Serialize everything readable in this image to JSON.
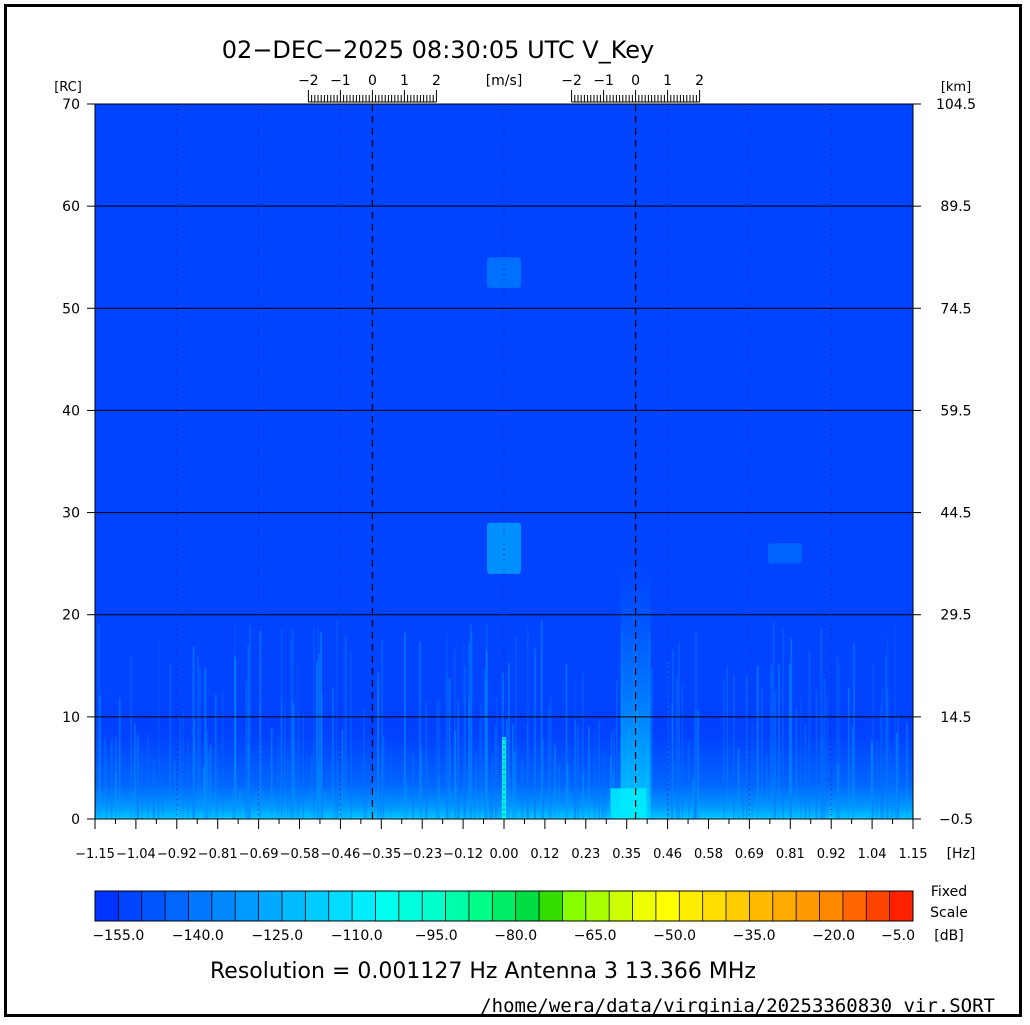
{
  "title": "02−DEC−2025 08:30:05 UTC   V_Key",
  "chart_data": {
    "type": "heatmap",
    "title": "02−DEC−2025 08:30:05 UTC   V_Key",
    "x": {
      "unit": "[Hz]",
      "range": [
        -1.15,
        1.15
      ],
      "tick_labels": [
        "−1.15",
        "−1.04",
        "−0.92",
        "−0.81",
        "−0.69",
        "−0.58",
        "−0.46",
        "−0.35",
        "−0.23",
        "−0.12",
        "0.00",
        "0.12",
        "0.23",
        "0.35",
        "0.46",
        "0.58",
        "0.69",
        "0.81",
        "0.92",
        "1.04",
        "1.15"
      ],
      "dashed_lines_at": [
        -0.37,
        0.37
      ],
      "dotted_lines_at": [
        -0.92,
        -0.69,
        -0.46,
        0.0,
        0.46,
        0.69,
        0.92
      ]
    },
    "y_left": {
      "unit": "[RC]",
      "range": [
        0,
        70
      ],
      "tick_labels": [
        "0",
        "10",
        "20",
        "30",
        "40",
        "50",
        "60",
        "70"
      ]
    },
    "y_right": {
      "unit": "[km]",
      "tick_labels": [
        "−0.5",
        "14.5",
        "29.5",
        "44.5",
        "59.5",
        "74.5",
        "89.5",
        "104.5"
      ]
    },
    "top_velocity_axes": [
      {
        "unit": "[m/s]",
        "center_hz": -0.37,
        "tick_labels": [
          "−2",
          "−1",
          "0",
          "1",
          "2"
        ]
      },
      {
        "unit": "",
        "center_hz": 0.37,
        "tick_labels": [
          "−2",
          "−1",
          "0",
          "1",
          "2"
        ]
      }
    ],
    "grid": true,
    "background_level_db": -155,
    "features": [
      {
        "x_hz": 0.0,
        "y_rc_range": [
          52,
          55
        ],
        "level_db": -140
      },
      {
        "x_hz": 0.0,
        "y_rc_range": [
          24,
          29
        ],
        "level_db": -130
      },
      {
        "x_hz": 0.79,
        "y_rc_range": [
          25,
          27
        ],
        "level_db": -145
      },
      {
        "x_hz": 0.37,
        "y_rc_range": [
          0,
          25
        ],
        "level_db": -125
      },
      {
        "x_hz": 0.35,
        "y_rc_range": [
          0,
          3
        ],
        "level_db": -110
      },
      {
        "x_hz": 0.0,
        "y_rc_range": [
          0,
          8
        ],
        "level_db": -100
      }
    ],
    "colorbar": {
      "label_top": "Fixed",
      "label_mid": "Scale",
      "unit": "[dB]",
      "tick_labels": [
        "−155.0",
        "−140.0",
        "−125.0",
        "−110.0",
        "−95.0",
        "−80.0",
        "−65.0",
        "−50.0",
        "−35.0",
        "−20.0",
        "−5.0"
      ],
      "colors": [
        "#0033ff",
        "#0044ff",
        "#0055ff",
        "#0066ff",
        "#0077ff",
        "#0088ff",
        "#0099ff",
        "#00aaff",
        "#00bbff",
        "#00ccff",
        "#00ddff",
        "#00eeff",
        "#00ffee",
        "#00ffdd",
        "#00ffcc",
        "#00ffaa",
        "#00ff88",
        "#00ee66",
        "#00dd44",
        "#33dd00",
        "#88ff00",
        "#aaff00",
        "#ccff00",
        "#eeff00",
        "#ffff00",
        "#ffee00",
        "#ffdd00",
        "#ffcc00",
        "#ffbb00",
        "#ffaa00",
        "#ff9900",
        "#ff8800",
        "#ff6600",
        "#ff4400",
        "#ff2200"
      ]
    }
  },
  "footer": {
    "resolution": "Resolution = 0.001127 Hz   Antenna  3   13.366 MHz",
    "path": "/home/wera/data/virginia/20253360830_vir.SORT"
  }
}
